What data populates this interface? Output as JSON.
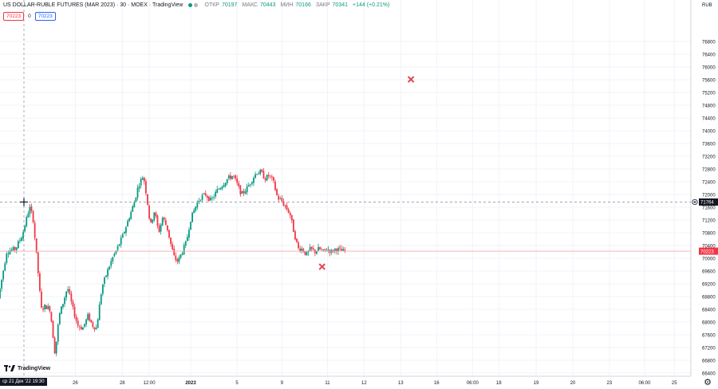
{
  "header": {
    "title": "US DOLLAR-RUBLE FUTURES (MAR 2023) · 30 · MOEX · TradingView",
    "open_label": "ОТКР",
    "open": "70197",
    "high_label": "МАКС",
    "high": "70443",
    "low_label": "МИН",
    "low": "70166",
    "close_label": "ЗАКР",
    "close": "70341",
    "change": "+144 (+0.21%)",
    "indicator_value_1": "70223",
    "indicator_zero": "0",
    "indicator_value_2": "70223"
  },
  "logo_text": "TradingView",
  "currency": "RUB",
  "cursor_time": "ср 21 Дек '22 19:30",
  "current_price_label": "70223",
  "cursor_price_label": "71764",
  "colors": {
    "up": "#089981",
    "down": "#f23645",
    "marker": "#e0454f",
    "grid": "#f0f3fa"
  },
  "chart_data": {
    "type": "candlestick",
    "ylim": [
      66300,
      78100
    ],
    "y_ticks": [
      66400,
      66800,
      67200,
      67600,
      68000,
      68400,
      68800,
      69200,
      69600,
      70000,
      70400,
      70800,
      71200,
      71600,
      72000,
      72400,
      72800,
      73200,
      73600,
      74000,
      74400,
      74800,
      75200,
      75600,
      76000,
      76400,
      76800
    ],
    "x_ticks": [
      {
        "label": "26",
        "x": 0.109
      },
      {
        "label": "28",
        "x": 0.177
      },
      {
        "label": "12:00",
        "x": 0.216
      },
      {
        "label": "2023",
        "x": 0.276
      },
      {
        "label": "5",
        "x": 0.343
      },
      {
        "label": "9",
        "x": 0.408
      },
      {
        "label": "11",
        "x": 0.474
      },
      {
        "label": "12",
        "x": 0.527
      },
      {
        "label": "13",
        "x": 0.58
      },
      {
        "label": "16",
        "x": 0.632
      },
      {
        "label": "06:00",
        "x": 0.684
      },
      {
        "label": "18",
        "x": 0.722
      },
      {
        "label": "19",
        "x": 0.776
      },
      {
        "label": "20",
        "x": 0.829
      },
      {
        "label": "23",
        "x": 0.882
      },
      {
        "label": "06:00",
        "x": 0.933
      },
      {
        "label": "25",
        "x": 0.976
      }
    ],
    "current_price": 70223,
    "cursor_price": 71764,
    "close_path": [
      [
        0.0,
        68750
      ],
      [
        0.012,
        70200
      ],
      [
        0.025,
        70300
      ],
      [
        0.035,
        70750
      ],
      [
        0.045,
        71600
      ],
      [
        0.05,
        71300
      ],
      [
        0.057,
        69700
      ],
      [
        0.062,
        68400
      ],
      [
        0.068,
        68500
      ],
      [
        0.075,
        68400
      ],
      [
        0.082,
        67000
      ],
      [
        0.088,
        68200
      ],
      [
        0.095,
        68700
      ],
      [
        0.1,
        69100
      ],
      [
        0.108,
        68400
      ],
      [
        0.115,
        67900
      ],
      [
        0.122,
        67800
      ],
      [
        0.13,
        68200
      ],
      [
        0.136,
        67900
      ],
      [
        0.142,
        67800
      ],
      [
        0.15,
        69100
      ],
      [
        0.158,
        69600
      ],
      [
        0.165,
        70000
      ],
      [
        0.172,
        70300
      ],
      [
        0.18,
        70700
      ],
      [
        0.188,
        71200
      ],
      [
        0.196,
        71700
      ],
      [
        0.203,
        72300
      ],
      [
        0.21,
        72600
      ],
      [
        0.215,
        71900
      ],
      [
        0.22,
        71000
      ],
      [
        0.226,
        71500
      ],
      [
        0.232,
        70800
      ],
      [
        0.238,
        71300
      ],
      [
        0.245,
        70900
      ],
      [
        0.25,
        70400
      ],
      [
        0.255,
        70000
      ],
      [
        0.26,
        69900
      ],
      [
        0.266,
        70200
      ],
      [
        0.272,
        70500
      ],
      [
        0.278,
        71200
      ],
      [
        0.285,
        71600
      ],
      [
        0.292,
        71900
      ],
      [
        0.3,
        72000
      ],
      [
        0.308,
        71800
      ],
      [
        0.316,
        72100
      ],
      [
        0.324,
        72300
      ],
      [
        0.332,
        72500
      ],
      [
        0.34,
        72600
      ],
      [
        0.346,
        72300
      ],
      [
        0.352,
        72000
      ],
      [
        0.36,
        72200
      ],
      [
        0.368,
        72500
      ],
      [
        0.374,
        72700
      ],
      [
        0.38,
        72700
      ],
      [
        0.386,
        72500
      ],
      [
        0.392,
        72600
      ],
      [
        0.398,
        72400
      ],
      [
        0.404,
        71900
      ],
      [
        0.41,
        71800
      ],
      [
        0.416,
        71600
      ],
      [
        0.422,
        71400
      ],
      [
        0.428,
        70800
      ],
      [
        0.434,
        70300
      ],
      [
        0.44,
        70300
      ],
      [
        0.446,
        70100
      ],
      [
        0.452,
        70300
      ],
      [
        0.458,
        70200
      ],
      [
        0.464,
        70300
      ],
      [
        0.47,
        70200
      ],
      [
        0.476,
        70300
      ],
      [
        0.482,
        70200
      ],
      [
        0.488,
        70300
      ],
      [
        0.494,
        70250
      ],
      [
        0.5,
        70223
      ]
    ],
    "markers": [
      {
        "x": 0.5948,
        "price": 75610
      },
      {
        "x": 0.4662,
        "price": 69735
      }
    ]
  }
}
